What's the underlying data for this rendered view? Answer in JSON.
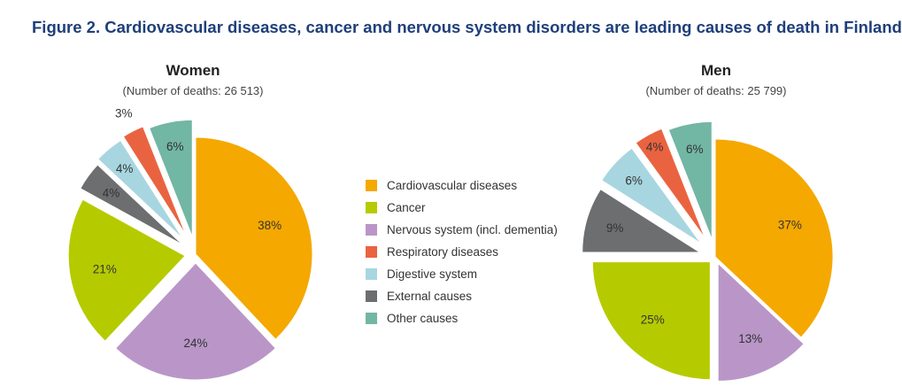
{
  "title": "Figure 2. Cardiovascular diseases, cancer and nervous system disorders are leading causes of death in Finland",
  "legend": [
    {
      "label": "Cardiovascular diseases",
      "color": "#f5a800"
    },
    {
      "label": "Cancer",
      "color": "#b5cb00"
    },
    {
      "label": "Nervous system (incl. dementia)",
      "color": "#b996c7"
    },
    {
      "label": "Respiratory diseases",
      "color": "#ea6340"
    },
    {
      "label": "Digestive system",
      "color": "#a8d6e0"
    },
    {
      "label": "External causes",
      "color": "#6d6e70"
    },
    {
      "label": "Other causes",
      "color": "#72b6a4"
    }
  ],
  "chart_data": [
    {
      "type": "pie",
      "title": "Women",
      "subtitle": "(Number of deaths: 26 513)",
      "categories": [
        "Cardiovascular diseases",
        "Nervous system (incl. dementia)",
        "Cancer",
        "External causes",
        "Digestive system",
        "Respiratory diseases",
        "Other causes"
      ],
      "values": [
        38,
        24,
        21,
        4,
        4,
        3,
        6
      ],
      "labels": [
        "38%",
        "24%",
        "21%",
        "4%",
        "4%",
        "3%",
        "6%"
      ],
      "colors": [
        "#f5a800",
        "#b996c7",
        "#b5cb00",
        "#6d6e70",
        "#a8d6e0",
        "#ea6340",
        "#72b6a4"
      ]
    },
    {
      "type": "pie",
      "title": "Men",
      "subtitle": "(Number of deaths: 25 799)",
      "categories": [
        "Cardiovascular diseases",
        "Nervous system (incl. dementia)",
        "Cancer",
        "External causes",
        "Digestive system",
        "Respiratory diseases",
        "Other causes"
      ],
      "values": [
        37,
        13,
        25,
        9,
        6,
        4,
        6
      ],
      "labels": [
        "37%",
        "13%",
        "25%",
        "9%",
        "6%",
        "4%",
        "6%"
      ],
      "colors": [
        "#f5a800",
        "#b996c7",
        "#b5cb00",
        "#6d6e70",
        "#a8d6e0",
        "#ea6340",
        "#72b6a4"
      ]
    }
  ]
}
